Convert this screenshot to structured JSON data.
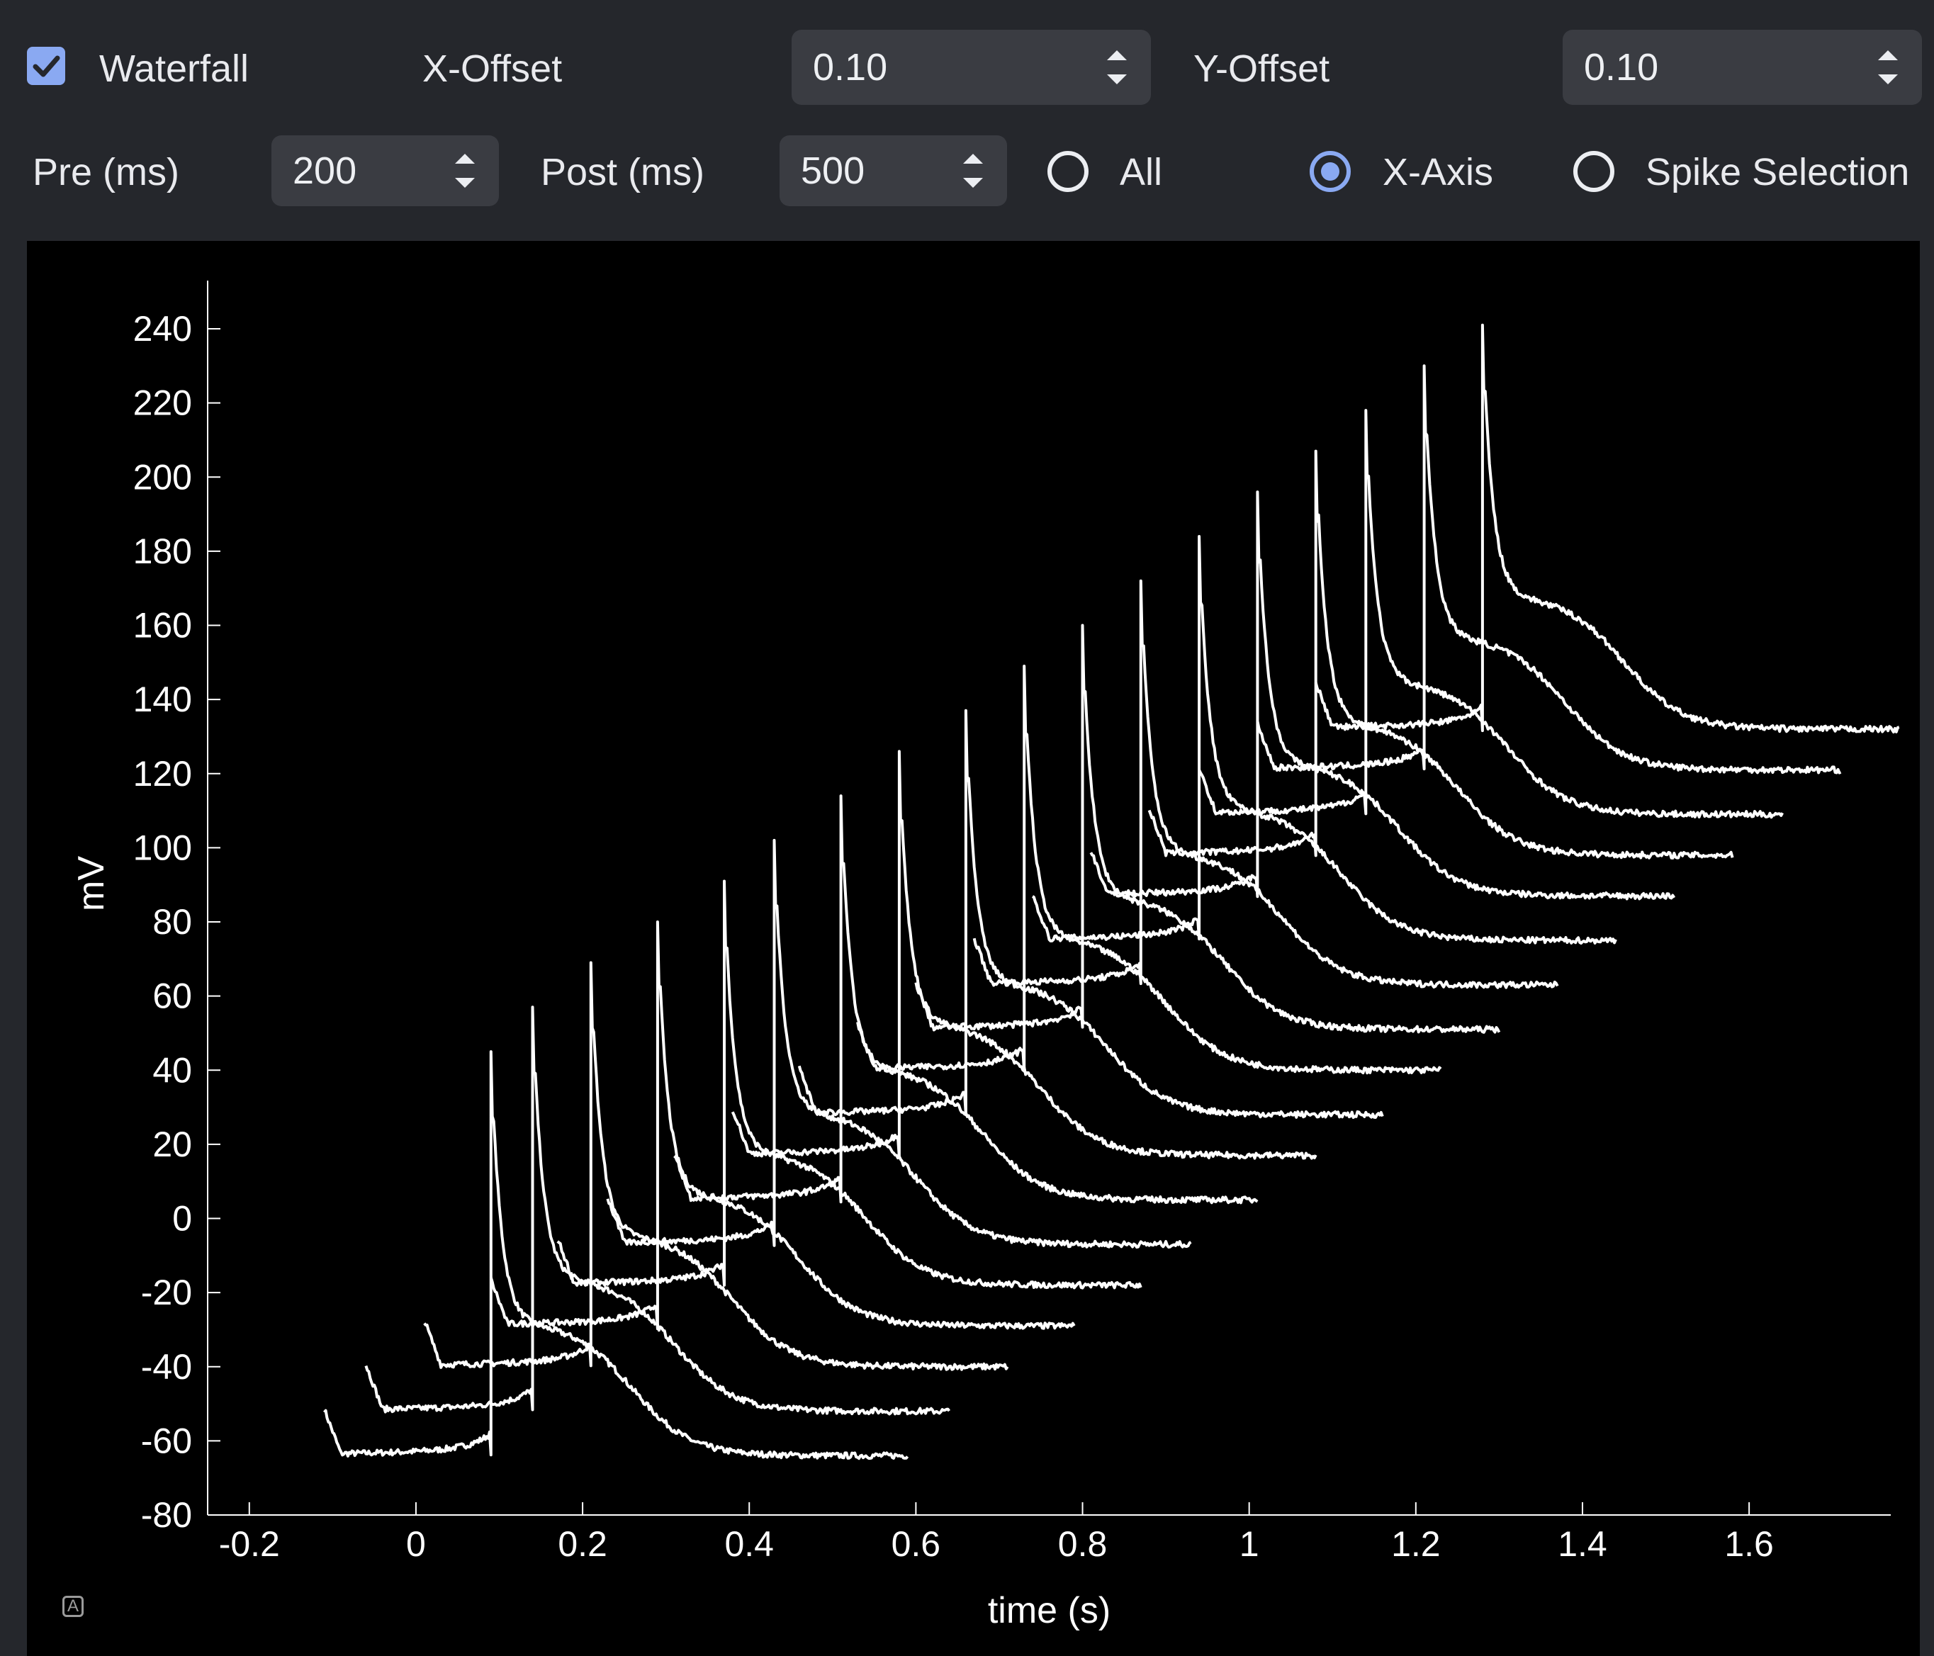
{
  "controls": {
    "waterfall": {
      "label": "Waterfall",
      "checked": true
    },
    "x_offset": {
      "label": "X-Offset",
      "value": "0.10"
    },
    "y_offset": {
      "label": "Y-Offset",
      "value": "0.10"
    },
    "pre": {
      "label": "Pre (ms)",
      "value": "200"
    },
    "post": {
      "label": "Post (ms)",
      "value": "500"
    },
    "alignment": {
      "options": [
        {
          "label": "All",
          "selected": false
        },
        {
          "label": "X-Axis",
          "selected": true
        },
        {
          "label": "Spike Selection",
          "selected": false
        }
      ]
    }
  },
  "colors": {
    "accent": "#8aa9f2",
    "panel": "#25272c",
    "plot_bg": "#000000",
    "trace": "#ffffff"
  },
  "chart_data": {
    "type": "line",
    "title": "",
    "xlabel": "time (s)",
    "ylabel": "mV",
    "xlim": [
      -0.25,
      1.77
    ],
    "ylim": [
      -80,
      253
    ],
    "x_ticks": [
      "-0.2",
      "0",
      "0.2",
      "0.4",
      "0.6",
      "0.8",
      "1",
      "1.2",
      "1.4",
      "1.6"
    ],
    "y_ticks": [
      "240",
      "220",
      "200",
      "180",
      "160",
      "140",
      "120",
      "100",
      "80",
      "60",
      "40",
      "20",
      "0",
      "-20",
      "-40",
      "-60",
      "-80"
    ],
    "grid": false,
    "legend": "none",
    "waterfall": {
      "x_offset": 0.1,
      "y_offset": 0.1
    },
    "trace_shape": {
      "window": [
        -0.2,
        0.5
      ],
      "baseline_mv": -64,
      "peak_rise_mv": 109,
      "after_plateau_mv": 36,
      "end_mv": -64
    },
    "series": [
      {
        "spike_time": 0.09,
        "baseline": -64
      },
      {
        "spike_time": 0.14,
        "baseline": -52
      },
      {
        "spike_time": 0.21,
        "baseline": -40
      },
      {
        "spike_time": 0.29,
        "baseline": -29
      },
      {
        "spike_time": 0.37,
        "baseline": -18
      },
      {
        "spike_time": 0.43,
        "baseline": -7
      },
      {
        "spike_time": 0.51,
        "baseline": 5
      },
      {
        "spike_time": 0.58,
        "baseline": 17
      },
      {
        "spike_time": 0.66,
        "baseline": 28
      },
      {
        "spike_time": 0.73,
        "baseline": 40
      },
      {
        "spike_time": 0.8,
        "baseline": 51
      },
      {
        "spike_time": 0.87,
        "baseline": 63
      },
      {
        "spike_time": 0.94,
        "baseline": 75
      },
      {
        "spike_time": 1.01,
        "baseline": 87
      },
      {
        "spike_time": 1.08,
        "baseline": 98
      },
      {
        "spike_time": 1.14,
        "baseline": 109
      },
      {
        "spike_time": 1.21,
        "baseline": 121
      },
      {
        "spike_time": 1.28,
        "baseline": 132
      }
    ]
  }
}
